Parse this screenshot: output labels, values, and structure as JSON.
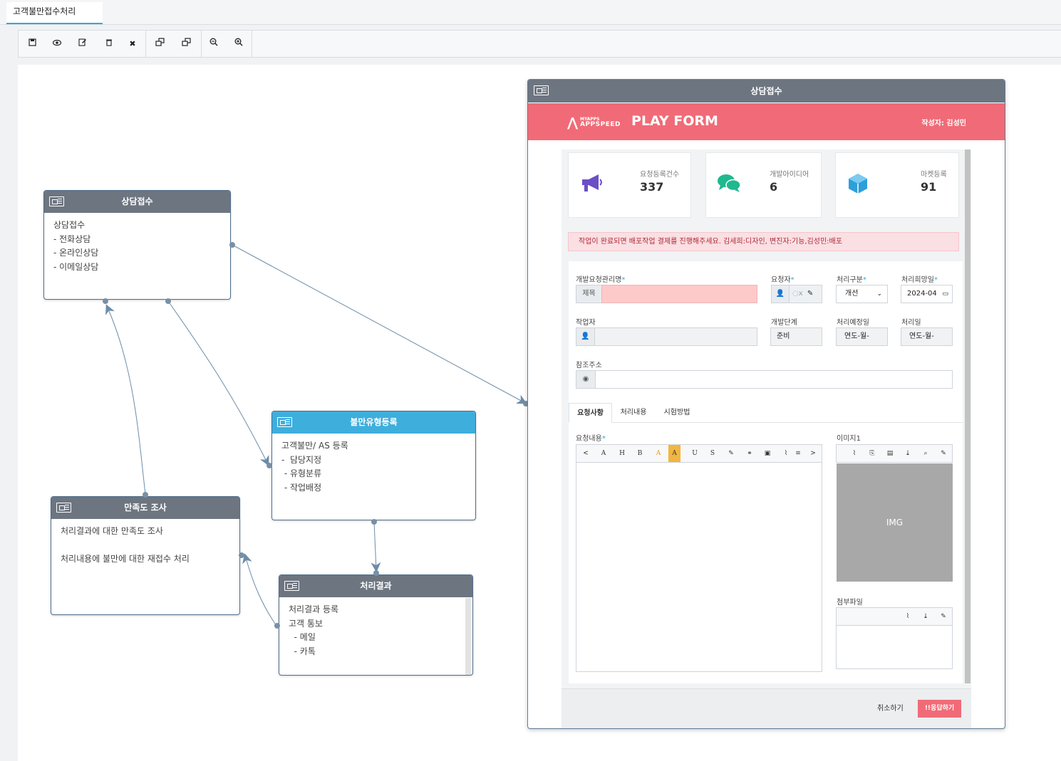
{
  "tab": {
    "label": "고객불만접수처리"
  },
  "nodes": {
    "consult": {
      "title": "상담접수",
      "body": "상담접수\n- 전화상담\n- 온라인상담\n- 이메일상담"
    },
    "complaint": {
      "title": "불만유형등록",
      "body": "고객불만/ AS 등록\n-  담당지정\n - 유형분류\n - 작업배정"
    },
    "satisfaction": {
      "title": "만족도 조사",
      "body": "처리결과에 대한 만족도 조사\n\n처리내용에 불만에 대한 재접수 처리"
    },
    "result": {
      "title": "처리결과",
      "body": "처리결과 등록\n고객 통보\n  - 메일\n  - 카톡"
    }
  },
  "popup": {
    "title": "상담접수",
    "brand_top": "MYAPPS",
    "brand_bottom": "APPSPEED",
    "form_title": "PLAY FORM",
    "author": "작성자: 김성민",
    "stats": [
      {
        "label": "요청등록건수",
        "value": "337",
        "icon": "megaphone-icon",
        "color": "#6b4fc6"
      },
      {
        "label": "개발아이디어",
        "value": "6",
        "icon": "chat-icon",
        "color": "#1fb88f"
      },
      {
        "label": "마켓등록",
        "value": "91",
        "icon": "cube-icon",
        "color": "#2d9fd9"
      }
    ],
    "alert": "작업이 완료되면 배포작업 결제를 진행해주세요. 김세희:디자인, 변진자:기능,김성민:배포",
    "fields": {
      "request_name_label": "개발요청관리명",
      "title_addon": "제목",
      "requester_label": "요청자",
      "process_type_label": "처리구분",
      "process_type_value": "개선",
      "desired_date_label": "처리희망일",
      "desired_date_value": "2024-04",
      "worker_label": "작업자",
      "dev_stage_label": "개발단계",
      "dev_stage_value": "준비",
      "planned_date_label": "처리예정일",
      "planned_date_value": "연도-월-",
      "processed_date_label": "처리일",
      "processed_date_value": "연도-월-",
      "ref_url_label": "참조주소"
    },
    "tabs": [
      "요청사항",
      "처리내용",
      "시험방법"
    ],
    "request_content_label": "요청내용",
    "image_label": "이미지1",
    "image_placeholder": "IMG",
    "attachment_label": "첨부파일",
    "cancel_label": "취소하기",
    "respond_label": "!!응답하기"
  }
}
